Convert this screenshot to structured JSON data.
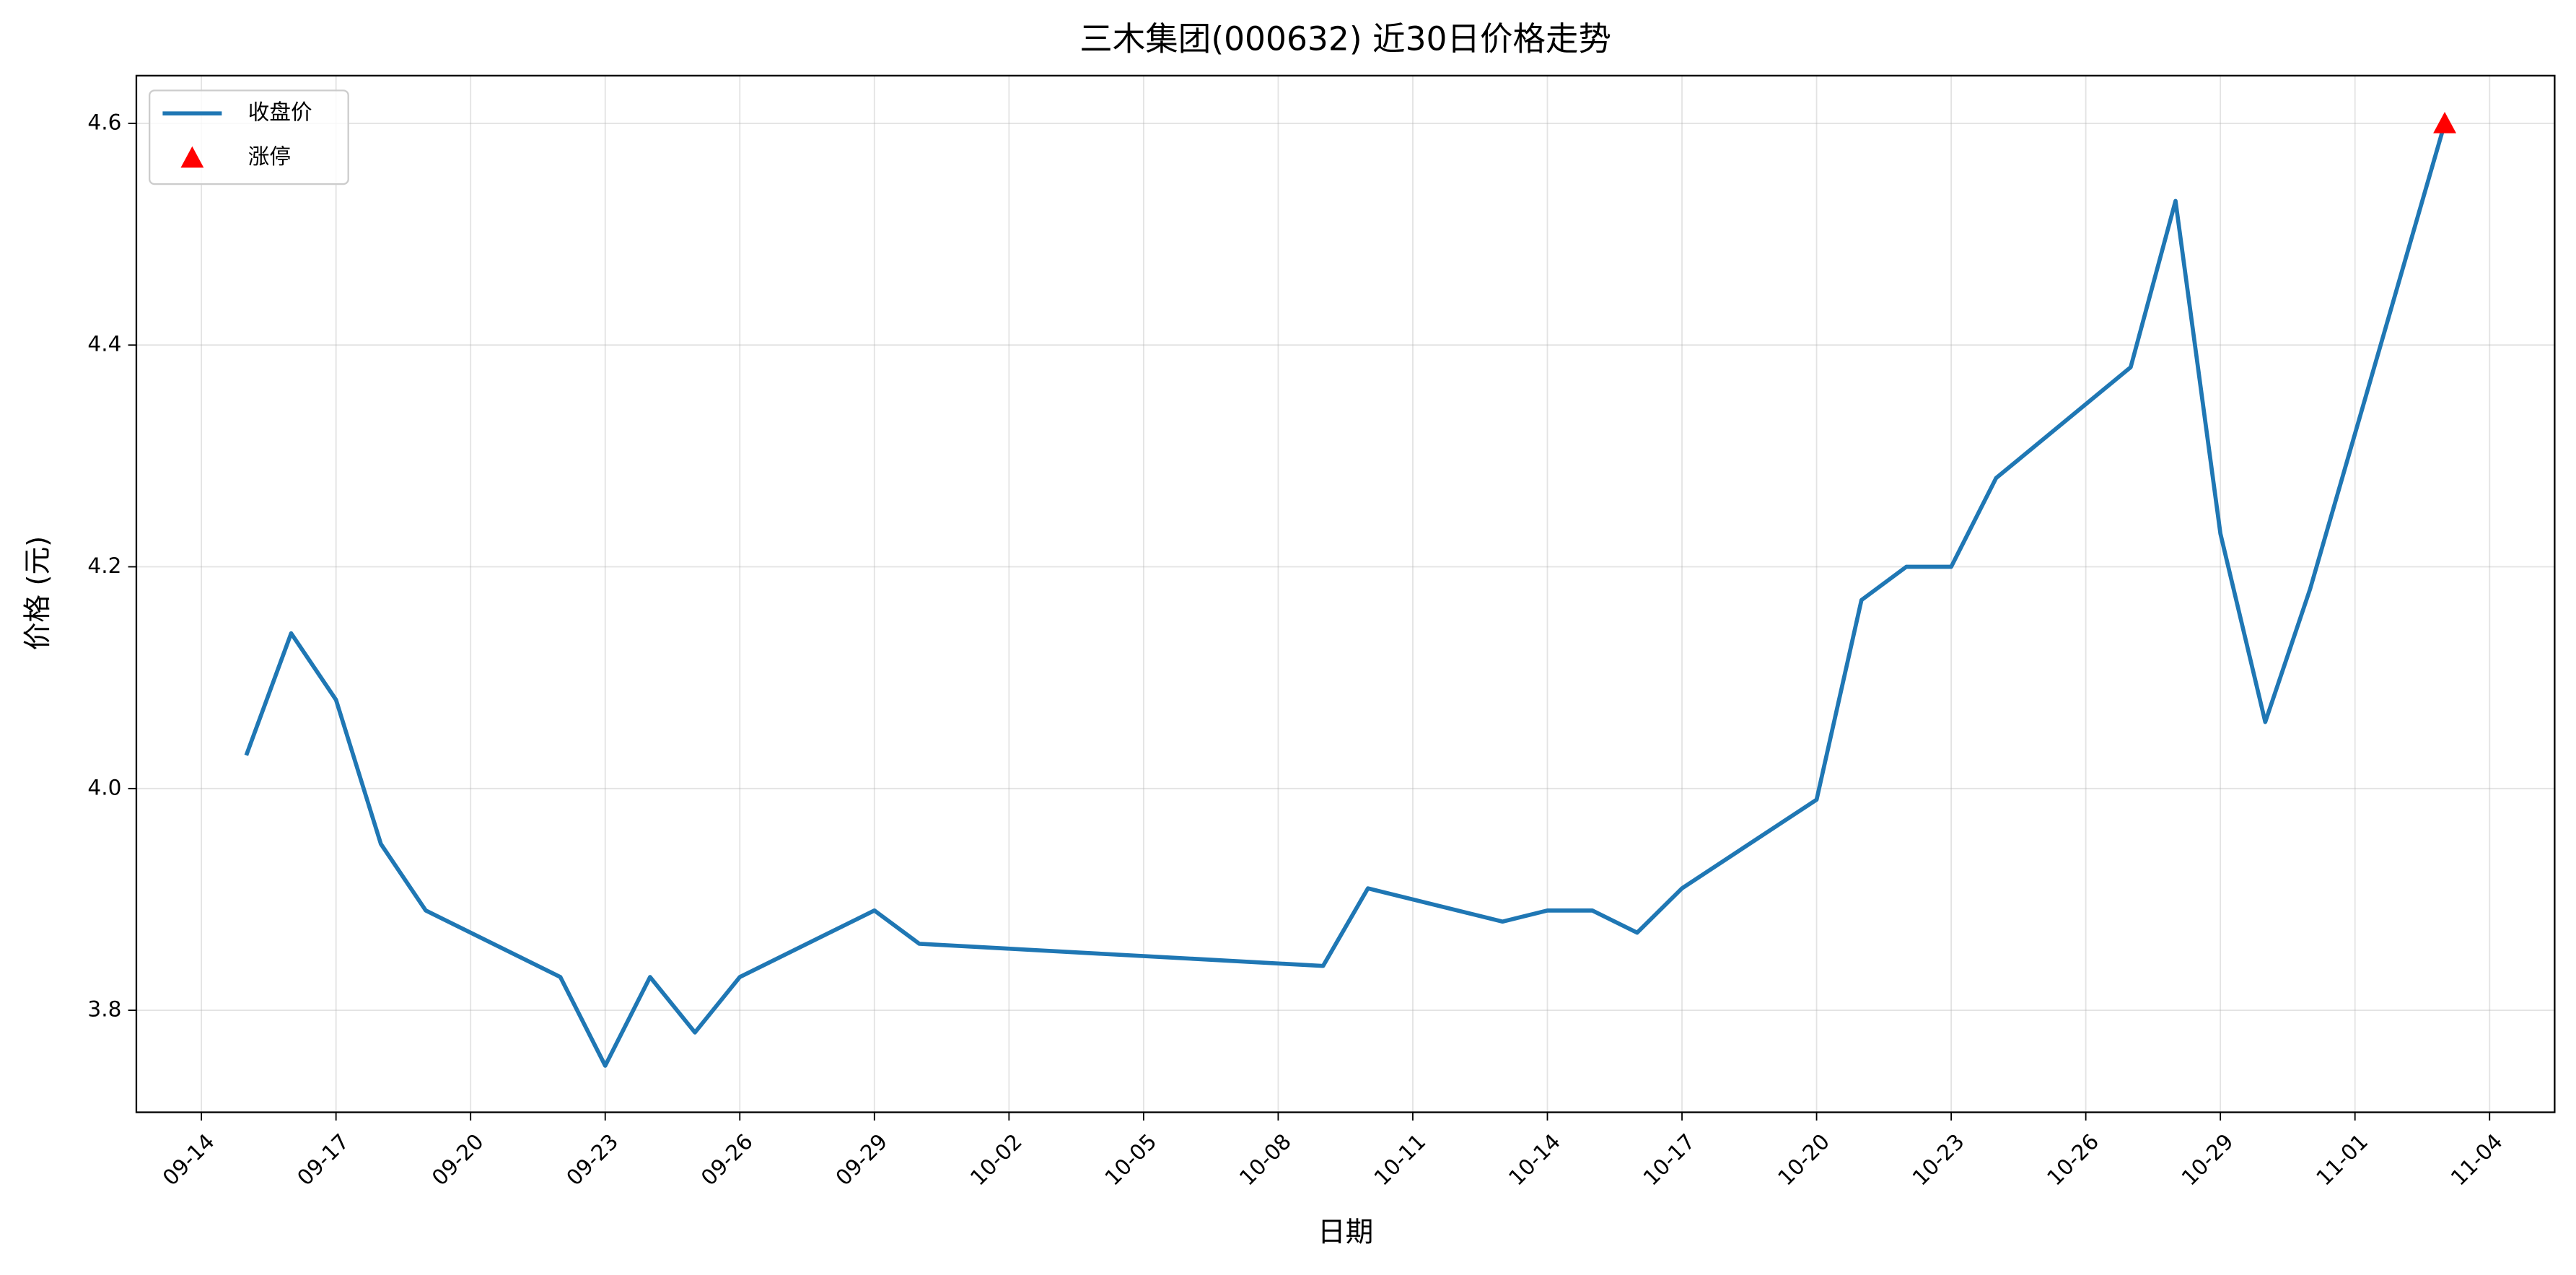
{
  "chart_data": {
    "type": "line",
    "title": "三木集团(000632) 近30日价格走势",
    "xlabel": "日期",
    "ylabel": "价格 (元)",
    "x": [
      "09-15",
      "09-16",
      "09-17",
      "09-18",
      "09-19",
      "09-22",
      "09-23",
      "09-24",
      "09-25",
      "09-26",
      "09-29",
      "09-30",
      "10-09",
      "10-10",
      "10-13",
      "10-14",
      "10-15",
      "10-16",
      "10-17",
      "10-20",
      "10-21",
      "10-22",
      "10-23",
      "10-24",
      "10-27",
      "10-28",
      "10-29",
      "10-30",
      "10-31",
      "11-03"
    ],
    "series": [
      {
        "name": "收盘价",
        "type": "line",
        "color": "#1f77b4",
        "values": [
          4.03,
          4.14,
          4.08,
          3.95,
          3.89,
          3.83,
          3.75,
          3.83,
          3.78,
          3.83,
          3.89,
          3.86,
          3.84,
          3.91,
          3.88,
          3.89,
          3.89,
          3.87,
          3.91,
          3.99,
          4.17,
          4.2,
          4.2,
          4.28,
          4.38,
          4.53,
          4.23,
          4.06,
          4.18,
          4.6
        ]
      },
      {
        "name": "涨停",
        "type": "scatter",
        "color": "#ff0000",
        "x": [
          "11-03"
        ],
        "values": [
          4.6
        ]
      }
    ],
    "xticks": [
      "09-14",
      "09-17",
      "09-20",
      "09-23",
      "09-26",
      "09-29",
      "10-02",
      "10-05",
      "10-08",
      "10-11",
      "10-14",
      "10-17",
      "10-20",
      "10-23",
      "10-26",
      "10-29",
      "11-01",
      "11-04"
    ],
    "ylim": [
      3.708,
      4.643
    ],
    "yticks": [
      3.8,
      {
        "value": 4,
        "label": "4.0"
      },
      4.2,
      4.4,
      4.6
    ],
    "grid": true,
    "legend": "upper-left"
  }
}
